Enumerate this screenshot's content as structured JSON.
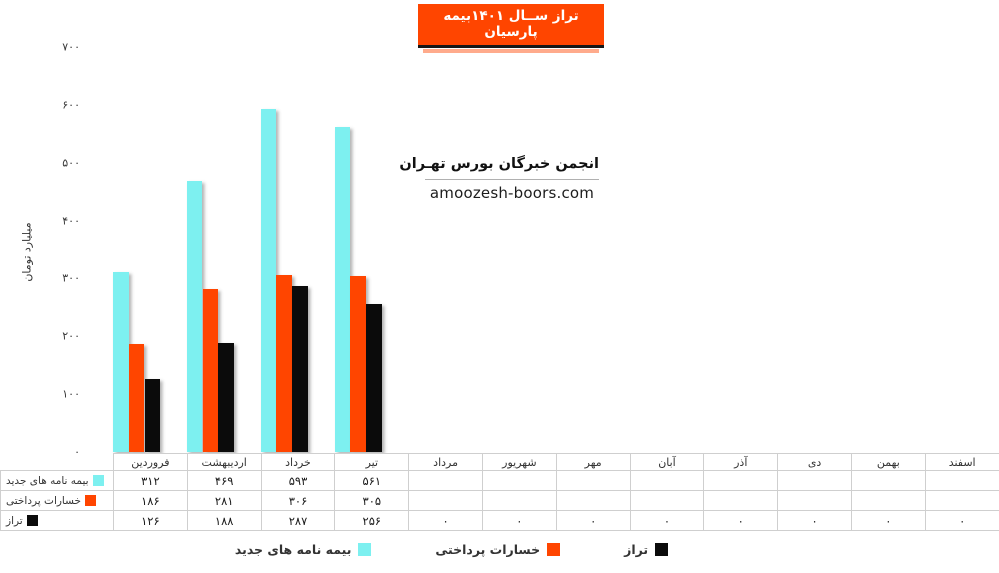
{
  "title": {
    "text": "تراز ســال ۱۴۰۱بیمه پارسیان",
    "bg_color": "#FF4500",
    "text_color": "#FFFFFF"
  },
  "watermark": {
    "line1": "انجمن خبرگان بورس تهـران",
    "line2": "amoozesh-boors.com"
  },
  "chart_data": {
    "type": "bar",
    "title": "تراز ســال ۱۴۰۱بیمه پارسیان",
    "ylabel": "میلیارد تومان",
    "ylim": [
      0,
      700
    ],
    "grid": false,
    "legend_position": "bottom",
    "y_ticks": [
      {
        "value": 700,
        "label": "۷۰۰"
      },
      {
        "value": 600,
        "label": "۶۰۰"
      },
      {
        "value": 500,
        "label": "۵۰۰"
      },
      {
        "value": 400,
        "label": "۴۰۰"
      },
      {
        "value": 300,
        "label": "۳۰۰"
      },
      {
        "value": 200,
        "label": "۲۰۰"
      },
      {
        "value": 100,
        "label": "۱۰۰"
      },
      {
        "value": 0,
        "label": "۰"
      }
    ],
    "categories": [
      "فروردین",
      "اردیبهشت",
      "خرداد",
      "تیر",
      "مرداد",
      "شهریور",
      "مهر",
      "آبان",
      "آذر",
      "دی",
      "بهمن",
      "اسفند"
    ],
    "series": [
      {
        "name": "بیمه نامه های جدید",
        "color": "#7DF0F0",
        "values": [
          312,
          469,
          593,
          561,
          null,
          null,
          null,
          null,
          null,
          null,
          null,
          null
        ],
        "display": [
          "۳۱۲",
          "۴۶۹",
          "۵۹۳",
          "۵۶۱",
          "",
          "",
          "",
          "",
          "",
          "",
          "",
          ""
        ]
      },
      {
        "name": "خسارات پرداختی",
        "color": "#FF4500",
        "values": [
          186,
          281,
          306,
          305,
          null,
          null,
          null,
          null,
          null,
          null,
          null,
          null
        ],
        "display": [
          "۱۸۶",
          "۲۸۱",
          "۳۰۶",
          "۳۰۵",
          "",
          "",
          "",
          "",
          "",
          "",
          "",
          ""
        ]
      },
      {
        "name": "تراز",
        "color": "#0B0B0B",
        "values": [
          126,
          188,
          287,
          256,
          0,
          0,
          0,
          0,
          0,
          0,
          0,
          0
        ],
        "display": [
          "۱۲۶",
          "۱۸۸",
          "۲۸۷",
          "۲۵۶",
          "۰",
          "۰",
          "۰",
          "۰",
          "۰",
          "۰",
          "۰",
          "۰"
        ]
      }
    ]
  }
}
